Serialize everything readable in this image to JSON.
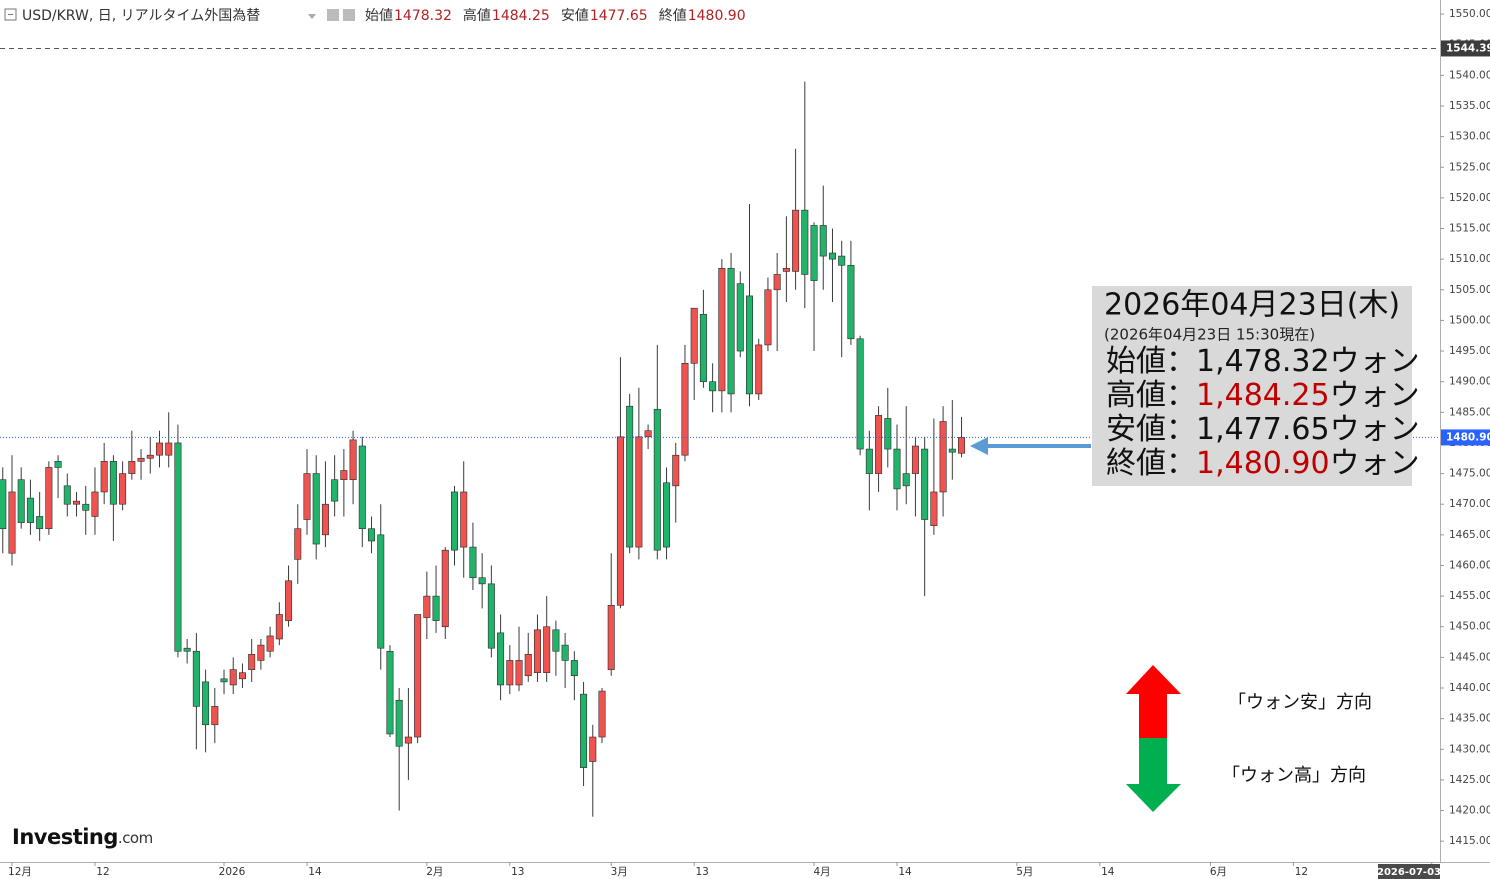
{
  "chart_data": {
    "type": "candlestick",
    "header": {
      "symbol": "USD/KRW, 日, リアルタイム外国為替",
      "ohlc": [
        {
          "name": "始値",
          "value": "1478.32"
        },
        {
          "name": "高値",
          "value": "1484.25"
        },
        {
          "name": "安値",
          "value": "1477.65"
        },
        {
          "name": "終値",
          "value": "1480.90"
        }
      ]
    },
    "up_color": "#ef5350",
    "down_color": "#22b36a",
    "wick_color": "#3a3a3a",
    "ohlc": [
      [
        1474,
        1476,
        1462,
        1466
      ],
      [
        1462,
        1478,
        1460,
        1472
      ],
      [
        1474,
        1476,
        1466,
        1467
      ],
      [
        1471,
        1474,
        1465,
        1467
      ],
      [
        1468,
        1472,
        1464,
        1466
      ],
      [
        1466,
        1477,
        1465,
        1476
      ],
      [
        1477,
        1478,
        1471,
        1476
      ],
      [
        1473,
        1475,
        1468,
        1470
      ],
      [
        1470,
        1472,
        1468,
        1470.5
      ],
      [
        1470,
        1473,
        1465,
        1469
      ],
      [
        1468,
        1476,
        1465,
        1472
      ],
      [
        1472,
        1480,
        1470,
        1477
      ],
      [
        1477,
        1478,
        1464,
        1470
      ],
      [
        1470,
        1477,
        1469,
        1475
      ],
      [
        1475,
        1482,
        1474,
        1477
      ],
      [
        1477,
        1479,
        1474,
        1477.5
      ],
      [
        1477.5,
        1481,
        1475,
        1478
      ],
      [
        1478,
        1482,
        1476,
        1480
      ],
      [
        1478,
        1485,
        1476,
        1480
      ],
      [
        1480,
        1483,
        1445,
        1446
      ],
      [
        1446.5,
        1448,
        1444,
        1446
      ],
      [
        1446,
        1449,
        1430,
        1437
      ],
      [
        1441,
        1443,
        1429.5,
        1434
      ],
      [
        1434,
        1440,
        1431,
        1437
      ],
      [
        1441.5,
        1443,
        1439,
        1441
      ],
      [
        1440.5,
        1445,
        1439,
        1443
      ],
      [
        1441.5,
        1444,
        1440,
        1442.5
      ],
      [
        1443,
        1448,
        1441,
        1445.5
      ],
      [
        1444.5,
        1448,
        1443,
        1447
      ],
      [
        1446,
        1450,
        1445,
        1448.5
      ],
      [
        1448,
        1454,
        1447,
        1452
      ],
      [
        1451,
        1460,
        1450,
        1457.5
      ],
      [
        1461,
        1470,
        1457,
        1466
      ],
      [
        1467.5,
        1479,
        1465,
        1475
      ],
      [
        1475,
        1478,
        1461,
        1463.5
      ],
      [
        1465,
        1477,
        1463,
        1470
      ],
      [
        1474,
        1478,
        1468,
        1470.5
      ],
      [
        1474,
        1479,
        1468,
        1475.5
      ],
      [
        1474,
        1482,
        1470,
        1480.5
      ],
      [
        1479.5,
        1481,
        1463,
        1466
      ],
      [
        1466,
        1468,
        1462,
        1464
      ],
      [
        1465,
        1470,
        1443,
        1446.5
      ],
      [
        1446,
        1447,
        1432,
        1432.5
      ],
      [
        1438,
        1440,
        1420,
        1430.5
      ],
      [
        1431,
        1440,
        1425,
        1432
      ],
      [
        1432,
        1452,
        1431,
        1452
      ],
      [
        1451.5,
        1459,
        1448,
        1455
      ],
      [
        1455,
        1460,
        1449,
        1451
      ],
      [
        1450,
        1463,
        1448,
        1462.5
      ],
      [
        1472,
        1473,
        1460,
        1462.5
      ],
      [
        1463,
        1477,
        1458,
        1472
      ],
      [
        1463,
        1467,
        1456,
        1458
      ],
      [
        1458,
        1462,
        1453,
        1457
      ],
      [
        1457,
        1460,
        1445,
        1446.5
      ],
      [
        1449,
        1452,
        1438,
        1440.5
      ],
      [
        1440.5,
        1447,
        1439,
        1444.5
      ],
      [
        1440.5,
        1450,
        1439.5,
        1444.5
      ],
      [
        1442,
        1449,
        1441,
        1445.5
      ],
      [
        1442.5,
        1452,
        1441,
        1449.5
      ],
      [
        1442.5,
        1455,
        1441,
        1450
      ],
      [
        1449.5,
        1451,
        1442,
        1446
      ],
      [
        1447,
        1449,
        1440,
        1444.5
      ],
      [
        1444.5,
        1446,
        1438,
        1442
      ],
      [
        1439,
        1441,
        1424,
        1427
      ],
      [
        1428,
        1434,
        1419,
        1432
      ],
      [
        1432,
        1440,
        1431,
        1439.5
      ],
      [
        1443,
        1462,
        1442,
        1453.5
      ],
      [
        1453.5,
        1494,
        1453,
        1481
      ],
      [
        1486,
        1488,
        1462,
        1463
      ],
      [
        1463,
        1489,
        1461,
        1481
      ],
      [
        1481,
        1483,
        1479,
        1482
      ],
      [
        1485.5,
        1496,
        1461,
        1462.5
      ],
      [
        1473.5,
        1476,
        1461,
        1463
      ],
      [
        1473,
        1480,
        1467,
        1478
      ],
      [
        1478,
        1496,
        1477,
        1493
      ],
      [
        1493,
        1502,
        1487,
        1502
      ],
      [
        1501,
        1505,
        1489,
        1490
      ],
      [
        1490,
        1493,
        1485,
        1488.5
      ],
      [
        1488.5,
        1510,
        1485,
        1508.5
      ],
      [
        1508.5,
        1511,
        1485,
        1488
      ],
      [
        1506,
        1508,
        1494,
        1495
      ],
      [
        1504,
        1519,
        1486,
        1488
      ],
      [
        1488,
        1497,
        1487,
        1496
      ],
      [
        1496,
        1507,
        1495,
        1505
      ],
      [
        1505,
        1511,
        1495,
        1507.5
      ],
      [
        1508,
        1517,
        1503,
        1508.5
      ],
      [
        1508,
        1528,
        1505,
        1518
      ],
      [
        1518,
        1539,
        1502,
        1507.5
      ],
      [
        1515.5,
        1516,
        1495,
        1506.5
      ],
      [
        1515.5,
        1522,
        1505,
        1510.5
      ],
      [
        1511,
        1515,
        1503,
        1510
      ],
      [
        1510.5,
        1513,
        1494,
        1509
      ],
      [
        1509,
        1513,
        1496,
        1497
      ],
      [
        1497,
        1497.5,
        1478,
        1479
      ],
      [
        1479,
        1482,
        1469,
        1475
      ],
      [
        1475,
        1486,
        1472,
        1484.5
      ],
      [
        1484,
        1489,
        1476,
        1479
      ],
      [
        1479,
        1483,
        1469,
        1472.5
      ],
      [
        1475,
        1486,
        1470,
        1473
      ],
      [
        1475,
        1481,
        1468,
        1479.5
      ],
      [
        1479,
        1481,
        1455,
        1467.5
      ],
      [
        1466.5,
        1484,
        1465,
        1472
      ],
      [
        1472,
        1486,
        1468,
        1483.5
      ],
      [
        1479,
        1487,
        1474,
        1478.5
      ],
      [
        1478.32,
        1484.25,
        1477.65,
        1480.9
      ]
    ],
    "xlim": [
      -0.3,
      155.9
    ],
    "xticks": [
      {
        "value": 1,
        "label": "12月"
      },
      {
        "value": 10,
        "label": "12"
      },
      {
        "value": 24,
        "label": "2026"
      },
      {
        "value": 33,
        "label": "14"
      },
      {
        "value": 46,
        "label": "2月"
      },
      {
        "value": 55,
        "label": "13"
      },
      {
        "value": 66,
        "label": "3月"
      },
      {
        "value": 75,
        "label": "13"
      },
      {
        "value": 88,
        "label": "4月"
      },
      {
        "value": 97,
        "label": "14"
      },
      {
        "value": 110,
        "label": "5月"
      },
      {
        "value": 119,
        "label": "14"
      },
      {
        "value": 131,
        "label": "6月"
      },
      {
        "value": 140,
        "label": "12"
      },
      {
        "value": 155,
        "label": "2026-07-03"
      }
    ],
    "ylim": [
      1411.6,
      1552.3
    ],
    "yticks": [
      {
        "value": 1415,
        "label": "1415.00"
      },
      {
        "value": 1420,
        "label": "1420.00"
      },
      {
        "value": 1425,
        "label": "1425.00"
      },
      {
        "value": 1430,
        "label": "1430.00"
      },
      {
        "value": 1435,
        "label": "1435.00"
      },
      {
        "value": 1440,
        "label": "1440.00"
      },
      {
        "value": 1445,
        "label": "1445.00"
      },
      {
        "value": 1450,
        "label": "1450.00"
      },
      {
        "value": 1455,
        "label": "1455.00"
      },
      {
        "value": 1460,
        "label": "1460.00"
      },
      {
        "value": 1465,
        "label": "1465.00"
      },
      {
        "value": 1470,
        "label": "1470.00"
      },
      {
        "value": 1475,
        "label": "1475.00"
      },
      {
        "value": 1480,
        "label": "1480.00"
      },
      {
        "value": 1485,
        "label": "1485.00"
      },
      {
        "value": 1490,
        "label": "1490.00"
      },
      {
        "value": 1495,
        "label": "1495.00"
      },
      {
        "value": 1500,
        "label": "1500.00"
      },
      {
        "value": 1505,
        "label": "1505.00"
      },
      {
        "value": 1510,
        "label": "1510.00"
      },
      {
        "value": 1515,
        "label": "1515.00"
      },
      {
        "value": 1520,
        "label": "1520.00"
      },
      {
        "value": 1525,
        "label": "1525.00"
      },
      {
        "value": 1530,
        "label": "1530.00"
      },
      {
        "value": 1535,
        "label": "1535.00"
      },
      {
        "value": 1540,
        "label": "1540.00"
      },
      {
        "value": 1545,
        "label": "1545.00"
      },
      {
        "value": 1550,
        "label": "1550.00"
      }
    ],
    "price_line": {
      "value": 1480.9,
      "label": "1480.90",
      "color": "#2962ff"
    },
    "reference_line": {
      "value": 1544.39,
      "label": "1544.39",
      "color": "#555555"
    },
    "info_box": {
      "date": "2026年04月23日(木)",
      "asof": "(2026年04月23日 15:30現在)",
      "rows": [
        {
          "name": "始値",
          "sep": "：",
          "value": "1,478.32",
          "unit": "ウォン",
          "highlight": false
        },
        {
          "name": "高値",
          "sep": "：",
          "value": "1,484.25",
          "unit": "ウォン",
          "highlight": true
        },
        {
          "name": "安値",
          "sep": "：",
          "value": "1,477.65",
          "unit": "ウォン",
          "highlight": false
        },
        {
          "name": "終値",
          "sep": "：",
          "value": "1,480.90",
          "unit": "ウォン",
          "highlight": true
        }
      ]
    },
    "directions": {
      "up": "「ウォン安」方向",
      "down": "「ウォン高」方向"
    },
    "logo": {
      "brand": "Investing",
      "suffix": ".com"
    }
  }
}
